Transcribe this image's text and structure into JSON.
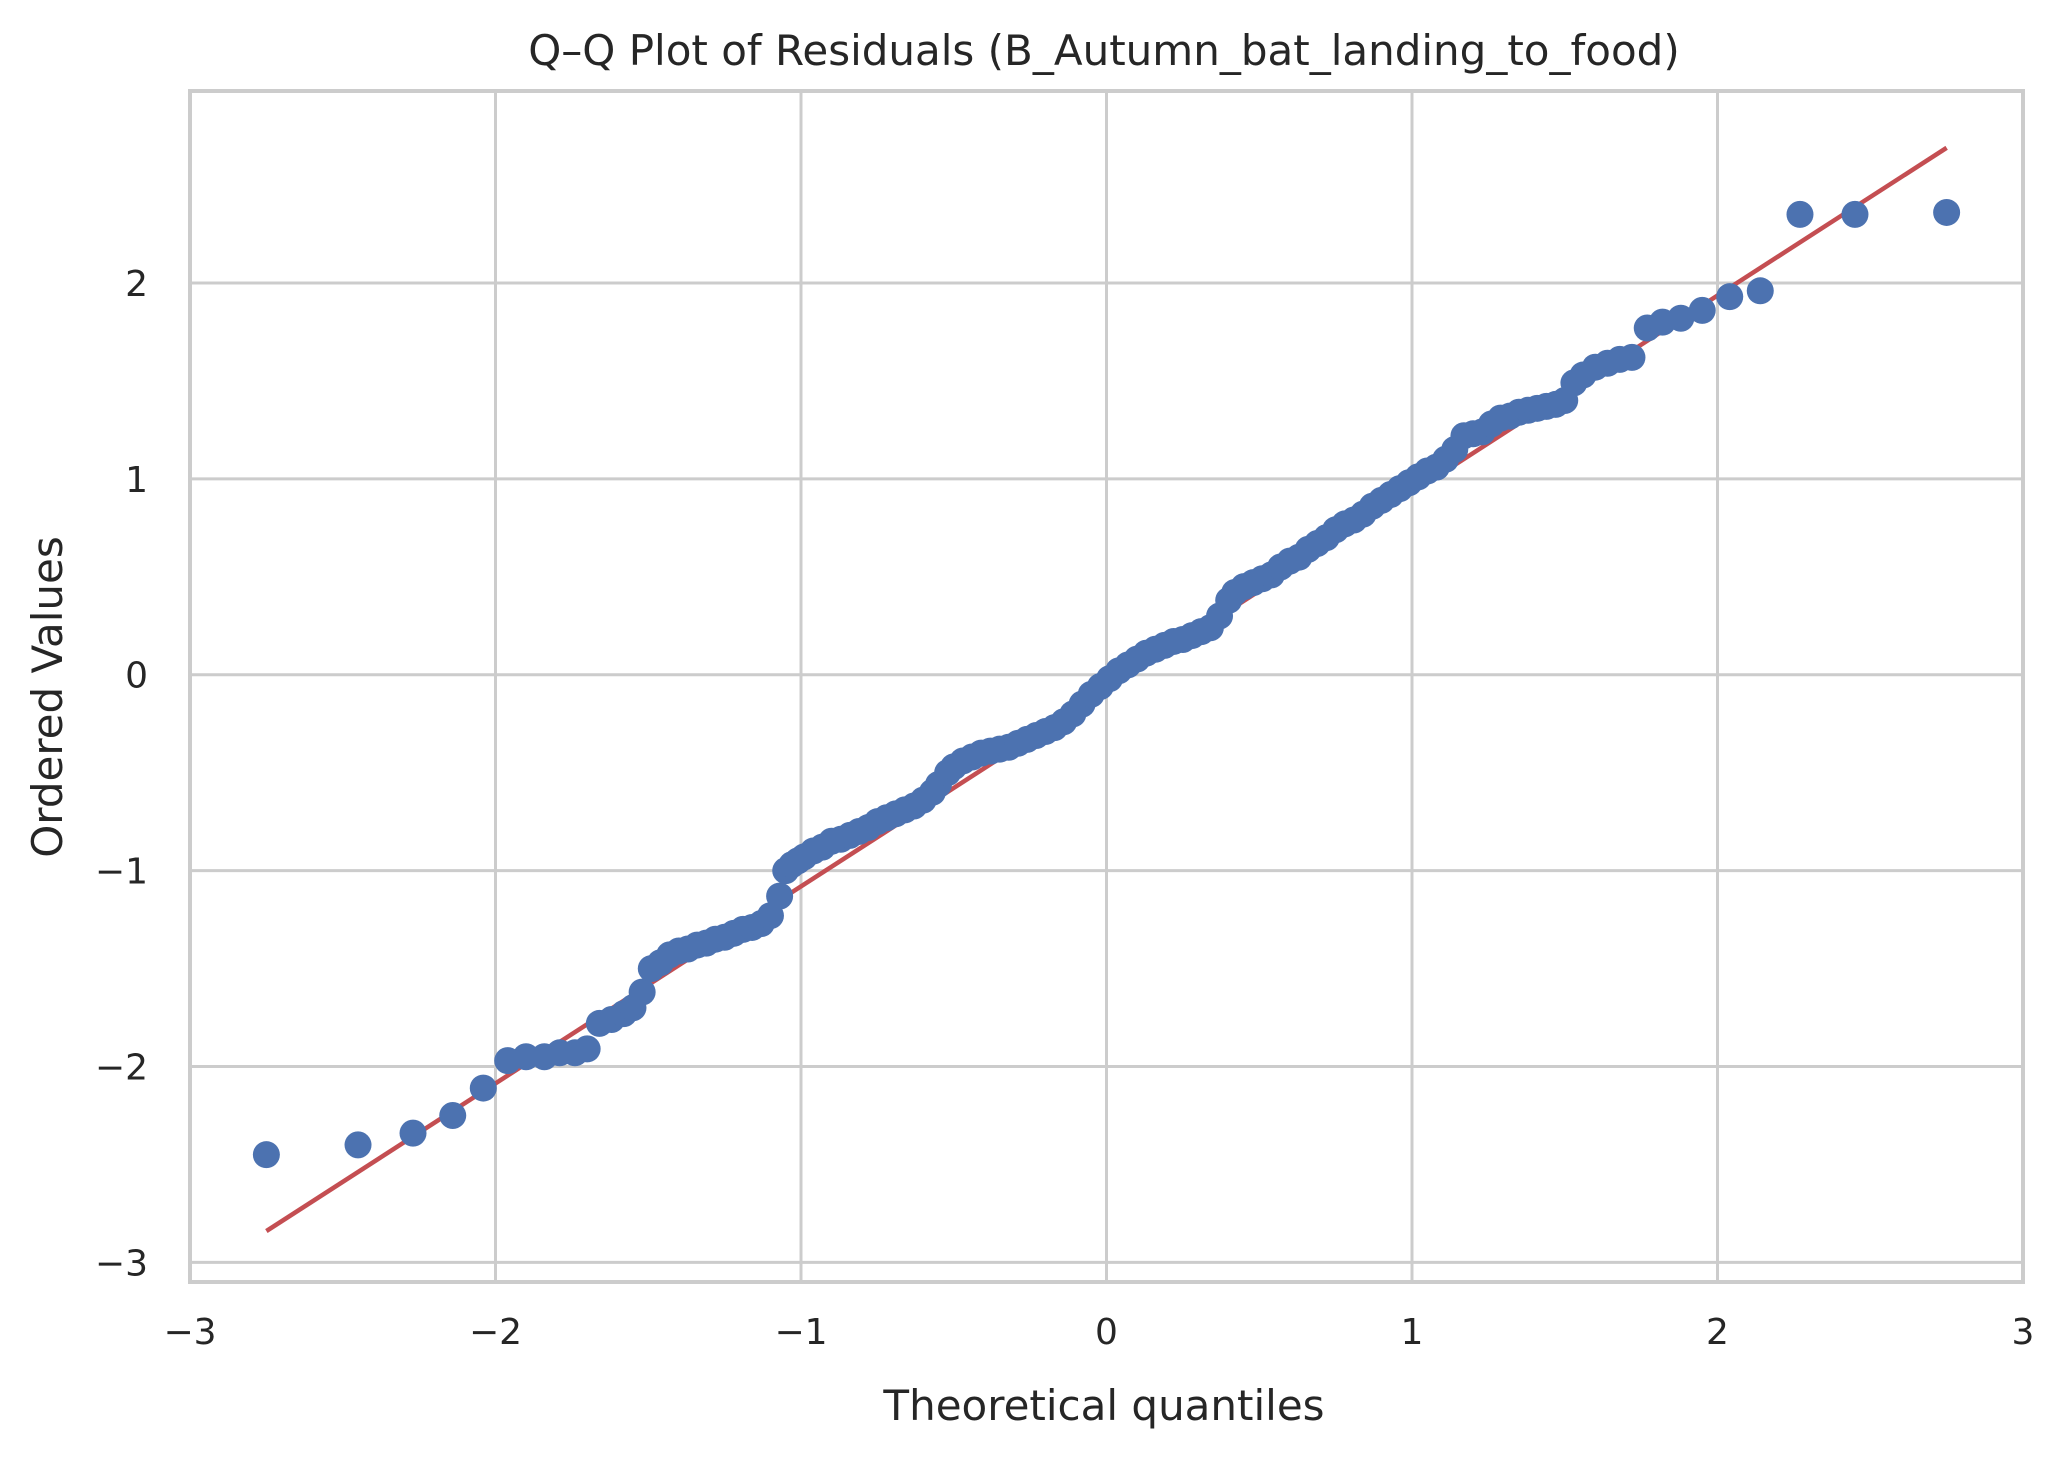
{
  "chart_data": {
    "type": "scatter",
    "title": "Q–Q Plot of Residuals (B_Autumn_bat_landing_to_food)",
    "xlabel": "Theoretical quantiles",
    "ylabel": "Ordered Values",
    "xlim": [
      -3,
      3
    ],
    "ylim": [
      -3.1,
      2.98
    ],
    "xticks": [
      -3,
      -2,
      -1,
      0,
      1,
      2,
      3
    ],
    "xtick_labels": [
      "−3",
      "−2",
      "−1",
      "0",
      "1",
      "2",
      "3"
    ],
    "yticks": [
      -3,
      -2,
      -1,
      0,
      1,
      2
    ],
    "ytick_labels": [
      "−3",
      "−2",
      "−1",
      "0",
      "1",
      "2"
    ],
    "grid": true,
    "colors": {
      "points": "#4c72b0",
      "fit_line": "#c44e52",
      "grid": "#cccccc",
      "spine": "#cccccc"
    },
    "fit_line": {
      "x": [
        -2.75,
        2.75
      ],
      "y": [
        -2.84,
        2.69
      ]
    },
    "series": [
      {
        "kind": "points",
        "x": [
          -2.75,
          -2.45,
          -2.27,
          -2.14,
          -2.04,
          -1.96,
          -1.9,
          -1.84,
          -1.79,
          -1.74,
          -1.7,
          -1.66,
          -1.62,
          -1.58,
          -1.55,
          -1.52,
          -1.49,
          -1.46,
          -1.43,
          -1.4,
          -1.37,
          -1.34,
          -1.31,
          -1.28,
          -1.25,
          -1.22,
          -1.19,
          -1.16,
          -1.13,
          -1.1,
          -1.07,
          -1.05,
          -1.03,
          -1.01,
          -0.99,
          -0.96,
          -0.93,
          -0.9,
          -0.87,
          -0.84,
          -0.81,
          -0.78,
          -0.75,
          -0.72,
          -0.69,
          -0.66,
          -0.63,
          -0.6,
          -0.57,
          -0.55,
          -0.52,
          -0.5,
          -0.47,
          -0.44,
          -0.41,
          -0.38,
          -0.35,
          -0.32,
          -0.29,
          -0.26,
          -0.23,
          -0.2,
          -0.17,
          -0.14,
          -0.11,
          -0.08,
          -0.05,
          -0.02,
          0.01,
          0.04,
          0.07,
          0.1,
          0.13,
          0.16,
          0.19,
          0.22,
          0.25,
          0.28,
          0.31,
          0.34,
          0.37,
          0.4,
          0.42,
          0.45,
          0.48,
          0.51,
          0.54,
          0.57,
          0.6,
          0.63,
          0.66,
          0.69,
          0.72,
          0.75,
          0.78,
          0.81,
          0.84,
          0.87,
          0.9,
          0.93,
          0.96,
          0.99,
          1.02,
          1.05,
          1.08,
          1.11,
          1.14,
          1.17,
          1.2,
          1.23,
          1.26,
          1.29,
          1.32,
          1.35,
          1.38,
          1.41,
          1.44,
          1.47,
          1.5,
          1.53,
          1.56,
          1.6,
          1.64,
          1.68,
          1.72,
          1.77,
          1.82,
          1.88,
          1.95,
          2.04,
          2.14,
          2.27,
          2.45,
          2.75
        ],
        "y": [
          -2.45,
          -2.4,
          -2.34,
          -2.25,
          -2.11,
          -1.97,
          -1.95,
          -1.95,
          -1.93,
          -1.93,
          -1.91,
          -1.78,
          -1.76,
          -1.73,
          -1.7,
          -1.62,
          -1.5,
          -1.47,
          -1.43,
          -1.41,
          -1.4,
          -1.38,
          -1.37,
          -1.35,
          -1.34,
          -1.32,
          -1.3,
          -1.29,
          -1.27,
          -1.23,
          -1.13,
          -1.0,
          -0.97,
          -0.95,
          -0.93,
          -0.9,
          -0.88,
          -0.85,
          -0.84,
          -0.82,
          -0.8,
          -0.78,
          -0.75,
          -0.73,
          -0.71,
          -0.69,
          -0.67,
          -0.64,
          -0.6,
          -0.56,
          -0.5,
          -0.47,
          -0.44,
          -0.42,
          -0.4,
          -0.39,
          -0.38,
          -0.37,
          -0.35,
          -0.33,
          -0.31,
          -0.29,
          -0.27,
          -0.24,
          -0.2,
          -0.15,
          -0.1,
          -0.06,
          -0.02,
          0.02,
          0.05,
          0.08,
          0.11,
          0.13,
          0.15,
          0.17,
          0.18,
          0.2,
          0.22,
          0.24,
          0.3,
          0.38,
          0.42,
          0.45,
          0.47,
          0.49,
          0.51,
          0.55,
          0.58,
          0.6,
          0.64,
          0.67,
          0.7,
          0.74,
          0.77,
          0.79,
          0.82,
          0.86,
          0.89,
          0.92,
          0.95,
          0.98,
          1.01,
          1.04,
          1.06,
          1.1,
          1.15,
          1.22,
          1.23,
          1.24,
          1.28,
          1.31,
          1.32,
          1.34,
          1.35,
          1.36,
          1.37,
          1.38,
          1.4,
          1.49,
          1.53,
          1.57,
          1.59,
          1.61,
          1.62,
          1.77,
          1.8,
          1.82,
          1.86,
          1.93,
          1.96,
          2.35,
          2.35,
          2.36
        ]
      }
    ]
  }
}
